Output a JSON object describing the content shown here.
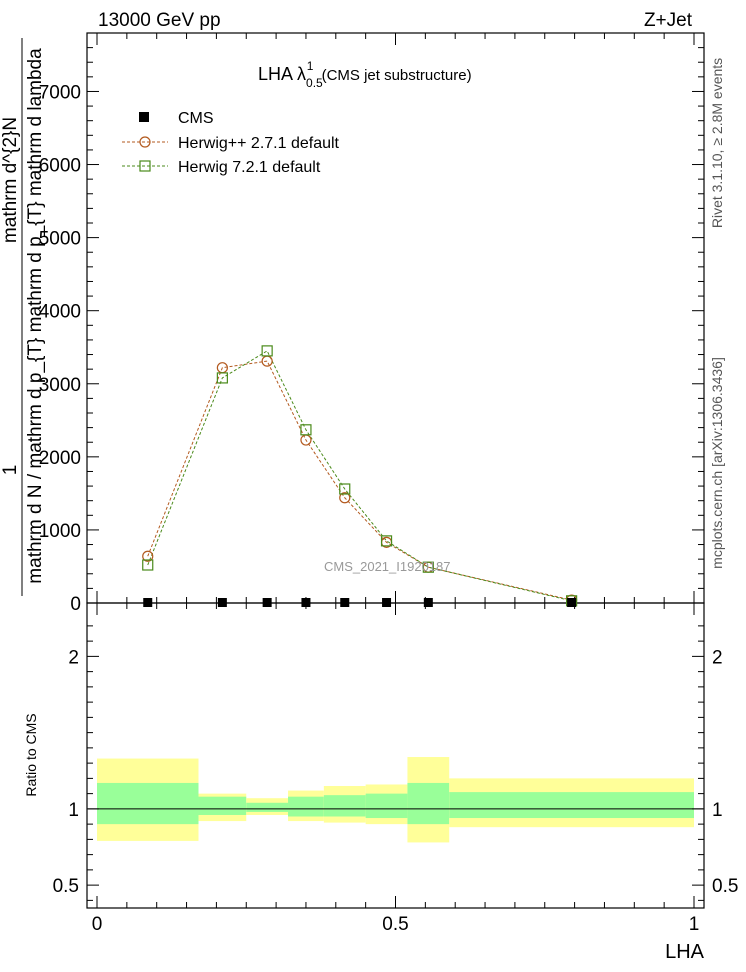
{
  "header": {
    "left": "13000 GeV pp",
    "right": "Z+Jet"
  },
  "title": {
    "main": "LHA λ",
    "sup": "1",
    "sub": "0.5",
    "suffix": " (CMS jet substructure)"
  },
  "side_labels": {
    "rivet": "Rivet 3.1.10, ≥ 2.8M events",
    "mcplots": "mcplots.cern.ch [arXiv:1306.3436]"
  },
  "watermark": "CMS_2021_I1920187",
  "ylabel_main": {
    "numerator": "1",
    "denominator": "mathrm d N / mathrm d p_{T} mathrm d p_{T} mathrm d lambda",
    "rotated_right": "mathrm d^{2}N",
    "left_top": "mathrm d^{2}N",
    "left_mid": "mathrm d p_{T} mathrm d lambda",
    "left_bottom": "mathrm d N / mathrm d p_{T}"
  },
  "ylabel_ratio": "Ratio to CMS",
  "xlabel": "LHA",
  "legend": [
    {
      "label": "CMS",
      "marker": "filled-square",
      "color": "#000000"
    },
    {
      "label": "Herwig++ 2.7.1 default",
      "marker": "open-circle",
      "color": "#b35a1f"
    },
    {
      "label": "Herwig 7.2.1 default",
      "marker": "open-square",
      "color": "#4a8a1a"
    }
  ],
  "chart_data": {
    "type": "line",
    "xlim": [
      0,
      1
    ],
    "main_ylim": [
      0,
      7800
    ],
    "main_yticks": [
      0,
      1000,
      2000,
      3000,
      4000,
      5000,
      6000,
      7000
    ],
    "main_ytick_labels": [
      "0",
      "1000",
      "2000",
      "3000",
      "4000",
      "5000",
      "6000",
      "7000"
    ],
    "ratio_ylim": [
      0.35,
      2.35
    ],
    "ratio_yticks": [
      0.5,
      1,
      2
    ],
    "ratio_ytick_labels": [
      "0.5",
      "1",
      "2"
    ],
    "xticks": [
      0,
      0.5,
      1
    ],
    "xtick_labels": [
      "0",
      "0.5",
      "1"
    ],
    "bins": [
      [
        0,
        0.17
      ],
      [
        0.17,
        0.25
      ],
      [
        0.25,
        0.32
      ],
      [
        0.32,
        0.38
      ],
      [
        0.38,
        0.45
      ],
      [
        0.45,
        0.52
      ],
      [
        0.52,
        0.59
      ],
      [
        0.59,
        1.0
      ]
    ],
    "x": [
      0.085,
      0.21,
      0.285,
      0.35,
      0.415,
      0.485,
      0.555,
      0.795
    ],
    "series": [
      {
        "name": "CMS",
        "values": [
          0,
          0,
          0,
          0,
          0,
          0,
          0,
          0
        ]
      },
      {
        "name": "Herwig++ 2.7.1 default",
        "values": [
          640,
          3220,
          3310,
          2230,
          1440,
          830,
          490,
          40
        ]
      },
      {
        "name": "Herwig 7.2.1 default",
        "values": [
          520,
          3080,
          3450,
          2370,
          1560,
          850,
          490,
          30
        ]
      }
    ],
    "ratio_bands": [
      {
        "lo_outer": 0.79,
        "hi_outer": 1.33,
        "lo_inner": 0.9,
        "hi_inner": 1.17
      },
      {
        "lo_outer": 0.92,
        "hi_outer": 1.1,
        "lo_inner": 0.96,
        "hi_inner": 1.08
      },
      {
        "lo_outer": 0.96,
        "hi_outer": 1.07,
        "lo_inner": 0.98,
        "hi_inner": 1.04
      },
      {
        "lo_outer": 0.92,
        "hi_outer": 1.12,
        "lo_inner": 0.95,
        "hi_inner": 1.08
      },
      {
        "lo_outer": 0.91,
        "hi_outer": 1.15,
        "lo_inner": 0.95,
        "hi_inner": 1.09
      },
      {
        "lo_outer": 0.9,
        "hi_outer": 1.16,
        "lo_inner": 0.94,
        "hi_inner": 1.1
      },
      {
        "lo_outer": 0.78,
        "hi_outer": 1.34,
        "lo_inner": 0.9,
        "hi_inner": 1.17
      },
      {
        "lo_outer": 0.88,
        "hi_outer": 1.2,
        "lo_inner": 0.94,
        "hi_inner": 1.11
      }
    ],
    "band_colors": {
      "outer": "#ffff99",
      "inner": "#99ff99"
    }
  }
}
